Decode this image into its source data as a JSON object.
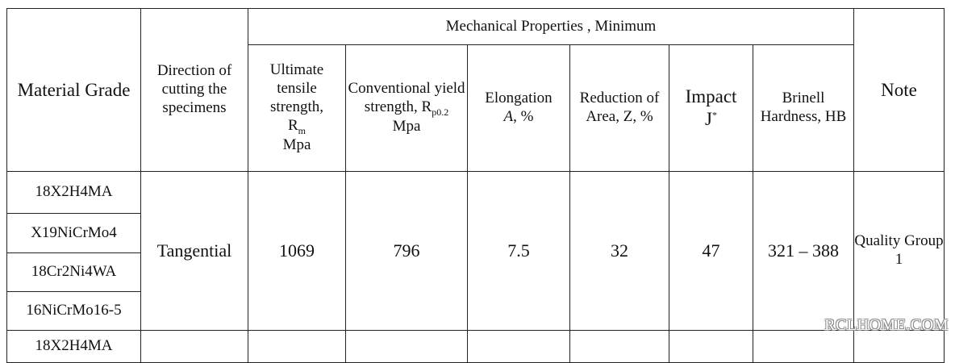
{
  "header": {
    "material_grade": "Material Grade",
    "direction": "Direction of cutting the specimens",
    "mechanical_group": "Mechanical Properties , Minimum",
    "uts_line1": "Ultimate tensile strength,",
    "uts_symbol": "R",
    "uts_sub": "m",
    "uts_unit": "Mpa",
    "yield_line1": "Conventional yield strength,",
    "yield_symbol": "R",
    "yield_sub": "p0.2",
    "yield_unit": "Mpa",
    "elongation_label": "Elongation",
    "elongation_symbol": "A",
    "elongation_unit": ", %",
    "reduction": "Reduction of Area, Z, %",
    "impact_label": "Impact",
    "impact_unit": "J",
    "impact_sup": "*",
    "brinell": "Brinell Hardness, HB",
    "note": "Note"
  },
  "rows": [
    {
      "grades": [
        "18X2H4MA",
        "X19NiCrMo4",
        "18Cr2Ni4WA",
        "16NiCrMo16-5"
      ],
      "direction": "Tangential",
      "uts": "1069",
      "yield": "796",
      "elongation": "7.5",
      "reduction": "32",
      "impact": "47",
      "brinell": "321 – 388",
      "note": "Quality Group 1"
    }
  ],
  "next_row_partial": {
    "grade": "18X2H4MA"
  },
  "watermark": "RCLHOME.COM"
}
